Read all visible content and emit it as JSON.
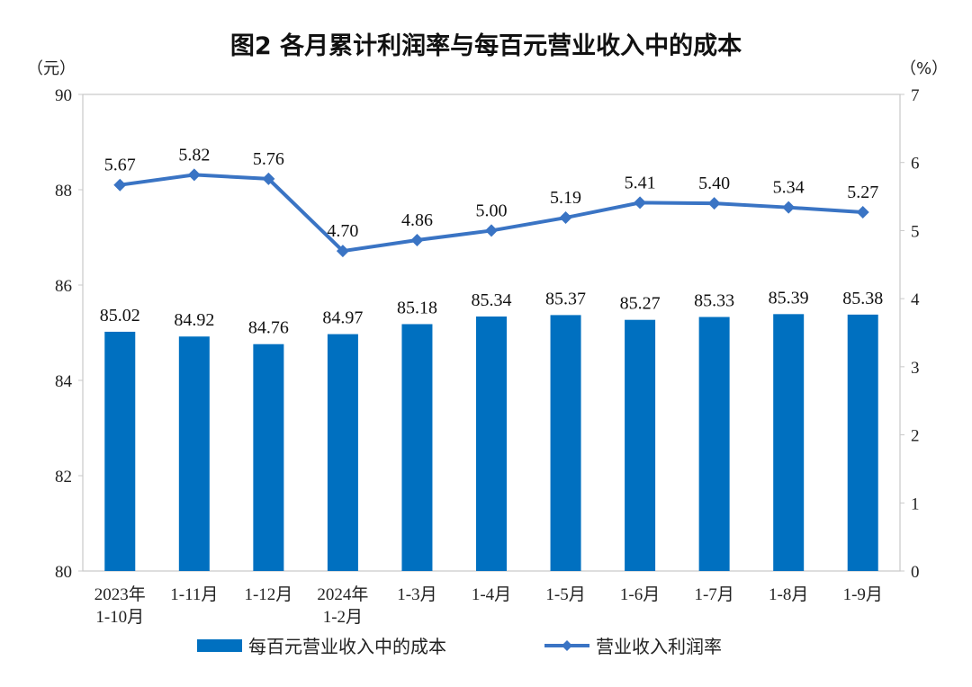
{
  "chart_data": {
    "type": "bar+line",
    "title": "图2  各月累计利润率与每百元营业收入中的成本",
    "y_left_unit": "（元）",
    "y_right_unit": "（%）",
    "y_left_range": [
      80,
      90
    ],
    "y_left_ticks": [
      "80",
      "82",
      "84",
      "86",
      "88",
      "90"
    ],
    "y_right_range": [
      0,
      7
    ],
    "y_right_ticks": [
      "0",
      "1",
      "2",
      "3",
      "4",
      "5",
      "6",
      "7"
    ],
    "categories": [
      [
        "2023年",
        "1-10月"
      ],
      [
        "1-11月"
      ],
      [
        "1-12月"
      ],
      [
        "2024年",
        "1-2月"
      ],
      [
        "1-3月"
      ],
      [
        "1-4月"
      ],
      [
        "1-5月"
      ],
      [
        "1-6月"
      ],
      [
        "1-7月"
      ],
      [
        "1-8月"
      ],
      [
        "1-9月"
      ]
    ],
    "series": [
      {
        "name": "每百元营业收入中的成本",
        "type": "bar",
        "axis": "left",
        "color": "#0070c0",
        "values": [
          85.02,
          84.92,
          84.76,
          84.97,
          85.18,
          85.34,
          85.37,
          85.27,
          85.33,
          85.39,
          85.38
        ],
        "labels": [
          "85.02",
          "84.92",
          "84.76",
          "84.97",
          "85.18",
          "85.34",
          "85.37",
          "85.27",
          "85.33",
          "85.39",
          "85.38"
        ]
      },
      {
        "name": "营业收入利润率",
        "type": "line",
        "axis": "right",
        "color": "#3a74c4",
        "marker": "diamond",
        "values": [
          5.67,
          5.82,
          5.76,
          4.7,
          4.86,
          5.0,
          5.19,
          5.41,
          5.4,
          5.34,
          5.27
        ],
        "labels": [
          "5.67",
          "5.82",
          "5.76",
          "4.70",
          "4.86",
          "5.00",
          "5.19",
          "5.41",
          "5.40",
          "5.34",
          "5.27"
        ]
      }
    ],
    "legend_position": "bottom",
    "grid": false
  }
}
